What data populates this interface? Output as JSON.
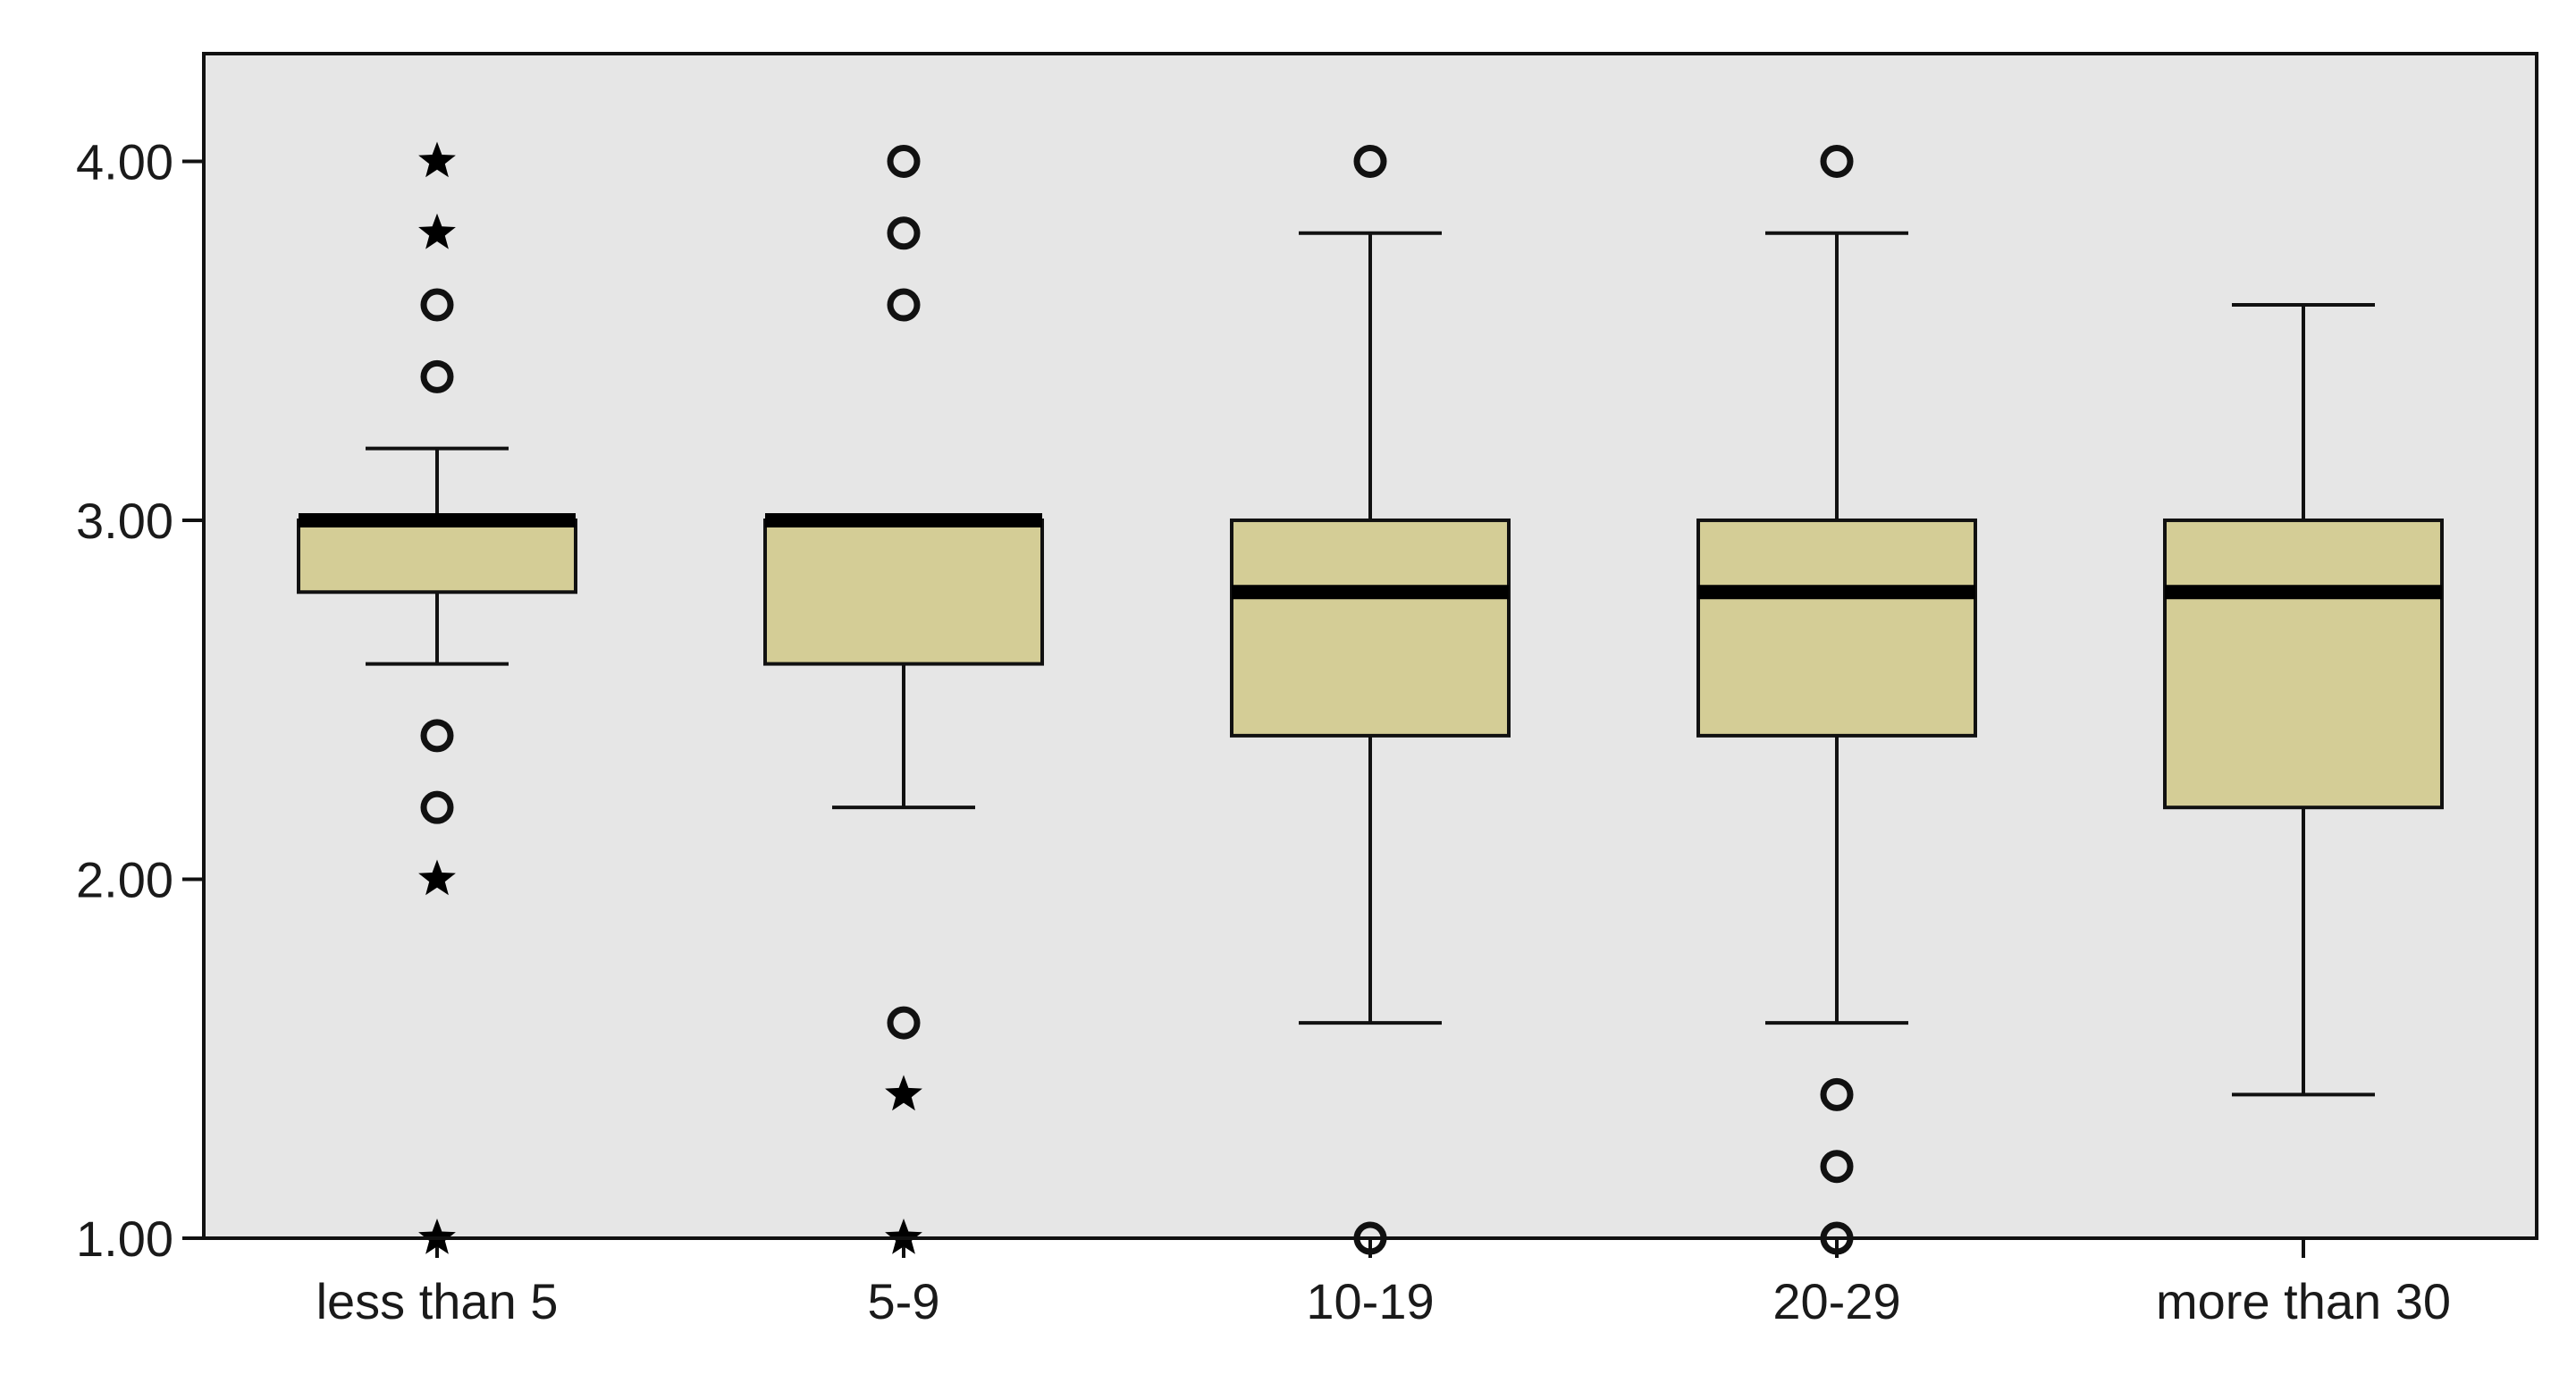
{
  "chart_data": {
    "type": "boxplot",
    "title": "",
    "xlabel": "",
    "ylabel": "",
    "ylim": [
      1.0,
      4.3
    ],
    "y_ticks": [
      "1.00",
      "2.00",
      "3.00",
      "4.00"
    ],
    "grid": false,
    "legend": "none",
    "colors": {
      "box_fill": "#d4cd96",
      "plot_background": "#e6e6e6",
      "stroke": "#111111",
      "mild_outlier_stroke": "#777777"
    },
    "categories": [
      "less than 5",
      "5-9",
      "10-19",
      "20-29",
      "more than 30"
    ],
    "boxes": [
      {
        "category": "less than 5",
        "q1": 2.8,
        "median": 3.0,
        "q3": 3.0,
        "whisker_low": 2.6,
        "whisker_high": 3.2,
        "outliers_circle": [
          3.6,
          3.4,
          2.4,
          2.2
        ],
        "outliers_star": [
          4.0,
          3.8,
          2.0,
          1.0
        ]
      },
      {
        "category": "5-9",
        "q1": 2.6,
        "median": 3.0,
        "q3": 3.0,
        "whisker_low": 2.2,
        "whisker_high": 3.0,
        "outliers_circle": [
          4.0,
          3.8,
          3.6,
          1.6
        ],
        "outliers_star": [
          1.4,
          1.0
        ]
      },
      {
        "category": "10-19",
        "q1": 2.4,
        "median": 2.8,
        "q3": 3.0,
        "whisker_low": 1.6,
        "whisker_high": 3.8,
        "outliers_circle": [
          4.0,
          1.0
        ],
        "outliers_star": []
      },
      {
        "category": "20-29",
        "q1": 2.4,
        "median": 2.8,
        "q3": 3.0,
        "whisker_low": 1.6,
        "whisker_high": 3.8,
        "outliers_circle": [
          4.0,
          1.4,
          1.2,
          1.0
        ],
        "outliers_star": []
      },
      {
        "category": "more than 30",
        "q1": 2.2,
        "median": 2.8,
        "q3": 3.0,
        "whisker_low": 1.4,
        "whisker_high": 3.6,
        "outliers_circle": [],
        "outliers_star": []
      }
    ]
  }
}
